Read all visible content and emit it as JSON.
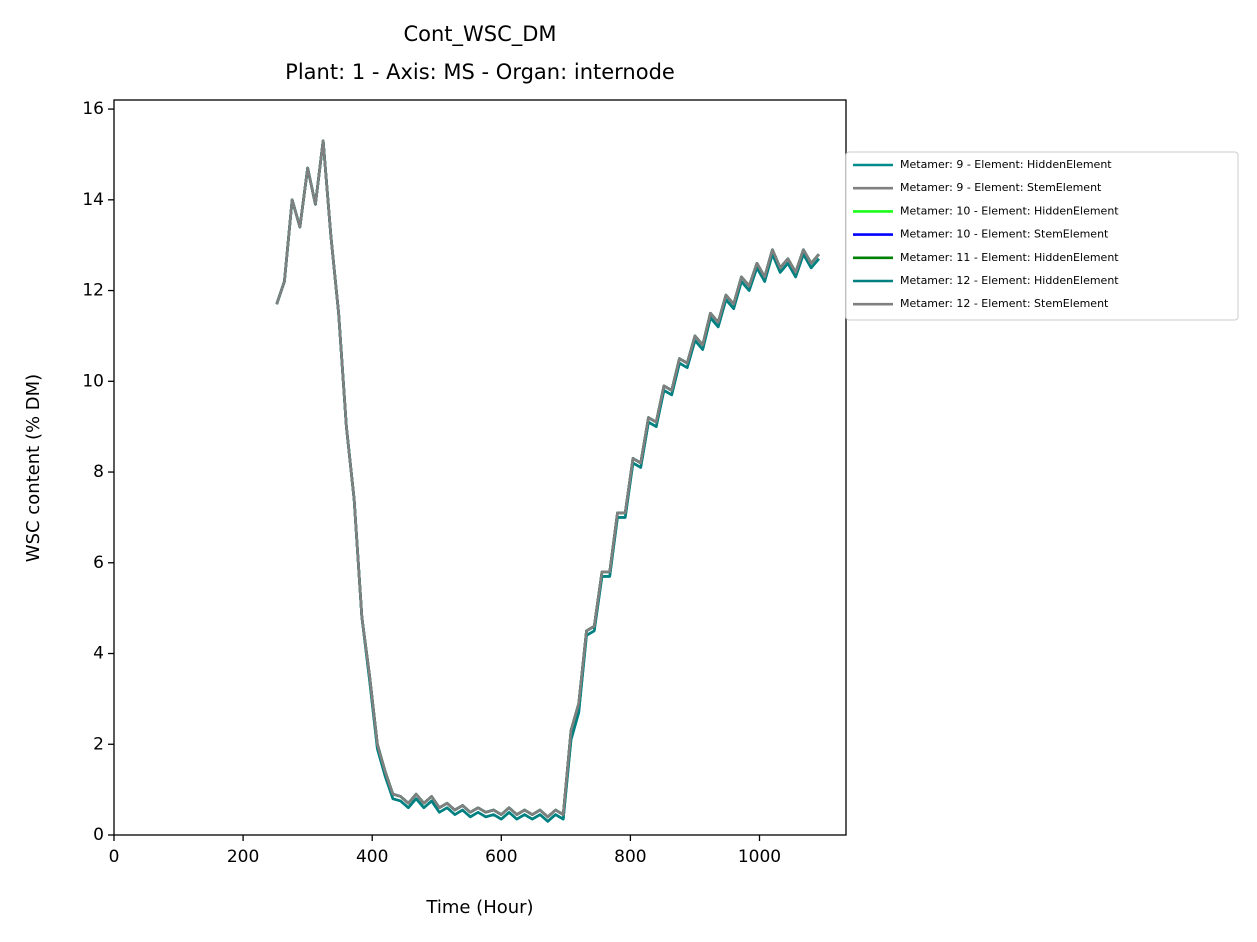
{
  "chart_data": {
    "type": "line",
    "title": "Cont_WSC_DM",
    "subtitle": "Plant: 1 - Axis: MS - Organ: internode",
    "x_label": "Time (Hour)",
    "y_label": "WSC content (% DM)",
    "xlim": [
      0,
      1134
    ],
    "ylim": [
      0,
      16.2
    ],
    "xticks": [
      0,
      200,
      400,
      600,
      800,
      1000
    ],
    "yticks": [
      0,
      2,
      4,
      6,
      8,
      10,
      12,
      14,
      16
    ],
    "grid": false,
    "legend": "outside right",
    "x": [
      252,
      264,
      276,
      288,
      300,
      312,
      324,
      336,
      348,
      360,
      372,
      384,
      396,
      408,
      420,
      432,
      444,
      456,
      468,
      480,
      492,
      504,
      516,
      528,
      540,
      552,
      564,
      576,
      588,
      600,
      612,
      624,
      636,
      648,
      660,
      672,
      684,
      696,
      708,
      720,
      732,
      744,
      756,
      768,
      780,
      792,
      804,
      816,
      828,
      840,
      852,
      864,
      876,
      888,
      900,
      912,
      924,
      936,
      948,
      960,
      972,
      984,
      996,
      1008,
      1020,
      1032,
      1044,
      1056,
      1068,
      1080,
      1092
    ],
    "series": [
      {
        "name": "Metamer: 9 - Element: HiddenElement",
        "color": "#008b8b",
        "values": [
          11.7,
          12.2,
          14.0,
          13.4,
          14.7,
          13.9,
          15.3,
          13.2,
          11.5,
          9.0,
          7.4,
          4.8,
          3.4,
          1.9,
          1.3,
          0.8,
          0.75,
          0.6,
          0.8,
          0.6,
          0.75,
          0.5,
          0.6,
          0.45,
          0.55,
          0.4,
          0.5,
          0.4,
          0.45,
          0.35,
          0.5,
          0.35,
          0.45,
          0.35,
          0.45,
          0.3,
          0.45,
          0.35,
          2.1,
          2.7,
          4.4,
          4.5,
          5.7,
          5.7,
          7.0,
          7.0,
          8.2,
          8.1,
          9.1,
          9.0,
          9.8,
          9.7,
          10.4,
          10.3,
          10.9,
          10.7,
          11.4,
          11.2,
          11.8,
          11.6,
          12.2,
          12.0,
          12.5,
          12.2,
          12.8,
          12.4,
          12.6,
          12.3,
          12.8,
          12.5,
          12.7
        ]
      },
      {
        "name": "Metamer: 9 - Element: StemElement",
        "color": "#808080",
        "values": [
          11.7,
          12.2,
          14.0,
          13.4,
          14.7,
          13.9,
          15.3,
          13.2,
          11.5,
          9.0,
          7.4,
          4.8,
          3.5,
          2.0,
          1.4,
          0.9,
          0.85,
          0.7,
          0.9,
          0.7,
          0.85,
          0.6,
          0.7,
          0.55,
          0.65,
          0.5,
          0.6,
          0.5,
          0.55,
          0.45,
          0.6,
          0.45,
          0.55,
          0.45,
          0.55,
          0.4,
          0.55,
          0.45,
          2.3,
          2.9,
          4.5,
          4.6,
          5.8,
          5.8,
          7.1,
          7.1,
          8.3,
          8.2,
          9.2,
          9.1,
          9.9,
          9.8,
          10.5,
          10.4,
          11.0,
          10.8,
          11.5,
          11.3,
          11.9,
          11.7,
          12.3,
          12.1,
          12.6,
          12.3,
          12.9,
          12.5,
          12.7,
          12.4,
          12.9,
          12.6,
          12.8
        ]
      },
      {
        "name": "Metamer: 10 - Element: HiddenElement",
        "color": "#1aff1a",
        "values": [
          11.7,
          12.2,
          14.0,
          13.4,
          14.7,
          13.9,
          15.3,
          13.2,
          11.5,
          9.0,
          7.4,
          4.8,
          3.5,
          2.0,
          1.4,
          0.9,
          0.85,
          0.7,
          0.9,
          0.7,
          0.85,
          0.6,
          0.7,
          0.55,
          0.65,
          0.5,
          0.6,
          0.5,
          0.55,
          0.45,
          0.6,
          0.45,
          0.55,
          0.45,
          0.55,
          0.4,
          0.55,
          0.45,
          2.3,
          2.9,
          4.5,
          4.6,
          5.8,
          5.8,
          7.1,
          7.1,
          8.3,
          8.2,
          9.2,
          9.1,
          9.9,
          9.8,
          10.5,
          10.4,
          11.0,
          10.8,
          11.5,
          11.3,
          11.9,
          11.7,
          12.3,
          12.1,
          12.6,
          12.3,
          12.9,
          12.5,
          12.7,
          12.4,
          12.9,
          12.6,
          12.8
        ]
      },
      {
        "name": "Metamer: 10 - Element: StemElement",
        "color": "#0000ff",
        "values": [
          11.7,
          12.2,
          14.0,
          13.4,
          14.7,
          13.9,
          15.3,
          13.2,
          11.5,
          9.0,
          7.4,
          4.8,
          3.5,
          2.0,
          1.4,
          0.9,
          0.85,
          0.7,
          0.9,
          0.7,
          0.85,
          0.6,
          0.7,
          0.55,
          0.65,
          0.5,
          0.6,
          0.5,
          0.55,
          0.45,
          0.6,
          0.45,
          0.55,
          0.45,
          0.55,
          0.4,
          0.55,
          0.45,
          2.3,
          2.9,
          4.5,
          4.6,
          5.8,
          5.8,
          7.1,
          7.1,
          8.3,
          8.2,
          9.2,
          9.1,
          9.9,
          9.8,
          10.5,
          10.4,
          11.0,
          10.8,
          11.5,
          11.3,
          11.9,
          11.7,
          12.3,
          12.1,
          12.6,
          12.3,
          12.9,
          12.5,
          12.7,
          12.4,
          12.9,
          12.6,
          12.8
        ]
      },
      {
        "name": "Metamer: 11 - Element: HiddenElement",
        "color": "#008000",
        "values": [
          11.7,
          12.2,
          14.0,
          13.4,
          14.7,
          13.9,
          15.3,
          13.2,
          11.5,
          9.0,
          7.4,
          4.8,
          3.5,
          2.0,
          1.4,
          0.9,
          0.85,
          0.7,
          0.9,
          0.7,
          0.85,
          0.6,
          0.7,
          0.55,
          0.65,
          0.5,
          0.6,
          0.5,
          0.55,
          0.45,
          0.6,
          0.45,
          0.55,
          0.45,
          0.55,
          0.4,
          0.55,
          0.45,
          2.3,
          2.9,
          4.5,
          4.6,
          5.8,
          5.8,
          7.1,
          7.1,
          8.3,
          8.2,
          9.2,
          9.1,
          9.9,
          9.8,
          10.5,
          10.4,
          11.0,
          10.8,
          11.5,
          11.3,
          11.9,
          11.7,
          12.3,
          12.1,
          12.6,
          12.3,
          12.9,
          12.5,
          12.7,
          12.4,
          12.9,
          12.6,
          12.8
        ]
      },
      {
        "name": "Metamer: 12 - Element: HiddenElement",
        "color": "#008080",
        "values": [
          11.7,
          12.2,
          14.0,
          13.4,
          14.7,
          13.9,
          15.3,
          13.2,
          11.5,
          9.0,
          7.4,
          4.8,
          3.4,
          1.9,
          1.3,
          0.8,
          0.75,
          0.6,
          0.8,
          0.6,
          0.75,
          0.5,
          0.6,
          0.45,
          0.55,
          0.4,
          0.5,
          0.4,
          0.45,
          0.35,
          0.5,
          0.35,
          0.45,
          0.35,
          0.45,
          0.3,
          0.45,
          0.35,
          2.1,
          2.7,
          4.4,
          4.5,
          5.7,
          5.7,
          7.0,
          7.0,
          8.2,
          8.1,
          9.1,
          9.0,
          9.8,
          9.7,
          10.4,
          10.3,
          10.9,
          10.7,
          11.4,
          11.2,
          11.8,
          11.6,
          12.2,
          12.0,
          12.5,
          12.2,
          12.8,
          12.4,
          12.6,
          12.3,
          12.8,
          12.5,
          12.7
        ]
      },
      {
        "name": "Metamer: 12 - Element: StemElement",
        "color": "#808080",
        "values": [
          11.7,
          12.2,
          14.0,
          13.4,
          14.7,
          13.9,
          15.3,
          13.2,
          11.5,
          9.0,
          7.4,
          4.8,
          3.5,
          2.0,
          1.4,
          0.9,
          0.85,
          0.7,
          0.9,
          0.7,
          0.85,
          0.6,
          0.7,
          0.55,
          0.65,
          0.5,
          0.6,
          0.5,
          0.55,
          0.45,
          0.6,
          0.45,
          0.55,
          0.45,
          0.55,
          0.4,
          0.55,
          0.45,
          2.3,
          2.9,
          4.5,
          4.6,
          5.8,
          5.8,
          7.1,
          7.1,
          8.3,
          8.2,
          9.2,
          9.1,
          9.9,
          9.8,
          10.5,
          10.4,
          11.0,
          10.8,
          11.5,
          11.3,
          11.9,
          11.7,
          12.3,
          12.1,
          12.6,
          12.3,
          12.9,
          12.5,
          12.7,
          12.4,
          12.9,
          12.6,
          12.8
        ]
      }
    ]
  }
}
